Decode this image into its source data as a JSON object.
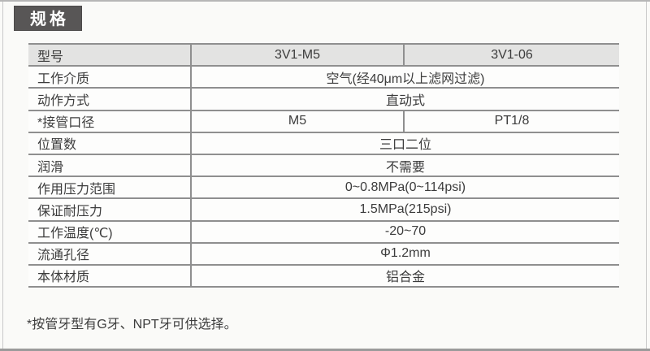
{
  "section": {
    "title": "规格",
    "footnote": "*按管牙型有G牙、NPT牙可供选择。"
  },
  "spec_table": {
    "rows": [
      {
        "label": "型号",
        "values": [
          "3V1-M5",
          "3V1-06"
        ]
      },
      {
        "label": "工作介质",
        "value": "空气(经40μm以上滤网过滤)"
      },
      {
        "label": "动作方式",
        "value": "直动式"
      },
      {
        "label": "*接管口径",
        "values": [
          "M5",
          "PT1/8"
        ]
      },
      {
        "label": "位置数",
        "value": "三口二位"
      },
      {
        "label": "润滑",
        "value": "不需要"
      },
      {
        "label": "作用压力范围",
        "value": "0~0.8MPa(0~114psi)"
      },
      {
        "label": "保证耐压力",
        "value": "1.5MPa(215psi)"
      },
      {
        "label": "工作温度(℃)",
        "value": "-20~70"
      },
      {
        "label": "流通孔径",
        "value": "Φ1.2mm"
      },
      {
        "label": "本体材质",
        "value": "铝合金"
      }
    ]
  },
  "colors": {
    "badge_bg": "#585656",
    "badge_text": "#ffffff",
    "header_row_bg": "#e3e3e2",
    "table_rule": "#8f8f8f",
    "text": "#3c3c3c",
    "page_bg": "#fafaf8",
    "bottom_rule": "#9b9b9b"
  }
}
